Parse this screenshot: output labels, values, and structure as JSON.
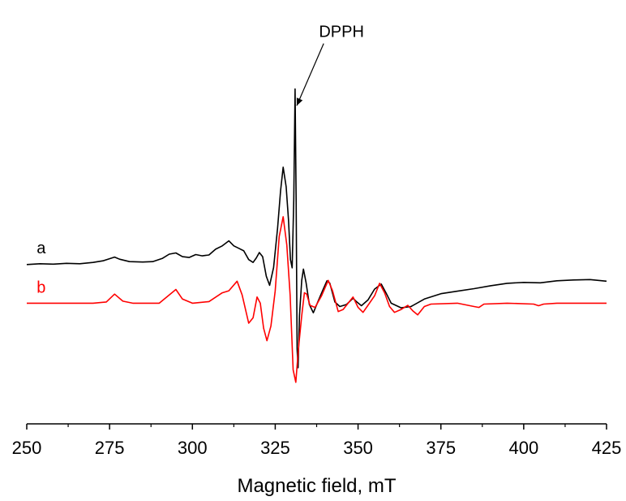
{
  "chart_data": {
    "type": "line",
    "title": "",
    "xlabel": "Magnetic field, mT",
    "ylabel": "",
    "xlim": [
      250,
      425
    ],
    "xticks": [
      250,
      275,
      300,
      325,
      350,
      375,
      400,
      425
    ],
    "x_tick_labels": [
      "250",
      "275",
      "300",
      "325",
      "350",
      "375",
      "400",
      "425"
    ],
    "yticks_shown": false,
    "grid": false,
    "legend": "none",
    "series": [
      {
        "name": "a",
        "color": "#000000",
        "points": [
          [
            250,
            0.93
          ],
          [
            254,
            0.95
          ],
          [
            258,
            0.94
          ],
          [
            262,
            0.96
          ],
          [
            266,
            0.95
          ],
          [
            270,
            0.98
          ],
          [
            273,
            1.02
          ],
          [
            275,
            1.07
          ],
          [
            276.5,
            1.11
          ],
          [
            278,
            1.06
          ],
          [
            281,
            1.0
          ],
          [
            285,
            0.99
          ],
          [
            288,
            1.0
          ],
          [
            291,
            1.08
          ],
          [
            293,
            1.18
          ],
          [
            295,
            1.21
          ],
          [
            297,
            1.12
          ],
          [
            299,
            1.1
          ],
          [
            301,
            1.17
          ],
          [
            303,
            1.14
          ],
          [
            305,
            1.16
          ],
          [
            307,
            1.3
          ],
          [
            309,
            1.38
          ],
          [
            311,
            1.5
          ],
          [
            312.5,
            1.38
          ],
          [
            314,
            1.32
          ],
          [
            315.5,
            1.26
          ],
          [
            317,
            1.05
          ],
          [
            318.3,
            0.98
          ],
          [
            319.3,
            1.09
          ],
          [
            320.2,
            1.22
          ],
          [
            321.2,
            1.12
          ],
          [
            322.3,
            0.65
          ],
          [
            323.3,
            0.43
          ],
          [
            324.5,
            0.86
          ],
          [
            325.7,
            1.8
          ],
          [
            326.6,
            2.7
          ],
          [
            327.4,
            3.27
          ],
          [
            328.3,
            2.8
          ],
          [
            329.0,
            2.0
          ],
          [
            329.6,
            1.05
          ],
          [
            330.1,
            0.85
          ],
          [
            330.6,
            2.5
          ],
          [
            331.0,
            5.15
          ],
          [
            331.3,
            2.5
          ],
          [
            331.6,
            -1.1
          ],
          [
            331.9,
            -1.55
          ],
          [
            332.3,
            -0.3
          ],
          [
            333.0,
            0.55
          ],
          [
            333.5,
            0.82
          ],
          [
            334.3,
            0.5
          ],
          [
            335.3,
            -0.03
          ],
          [
            336.5,
            -0.23
          ],
          [
            338.0,
            0.06
          ],
          [
            339.5,
            0.34
          ],
          [
            340.6,
            0.54
          ],
          [
            341.5,
            0.48
          ],
          [
            343.0,
            0.03
          ],
          [
            344.5,
            -0.08
          ],
          [
            346.5,
            -0.03
          ],
          [
            348.5,
            0.12
          ],
          [
            349.5,
            0.04
          ],
          [
            351.0,
            -0.06
          ],
          [
            353.0,
            0.08
          ],
          [
            355.0,
            0.34
          ],
          [
            357.0,
            0.46
          ],
          [
            358.5,
            0.24
          ],
          [
            360.0,
            0.0
          ],
          [
            363.0,
            -0.11
          ],
          [
            366.0,
            -0.08
          ],
          [
            370.0,
            0.1
          ],
          [
            375.0,
            0.23
          ],
          [
            380.0,
            0.29
          ],
          [
            385.0,
            0.35
          ],
          [
            390.0,
            0.42
          ],
          [
            395.0,
            0.48
          ],
          [
            400.0,
            0.5
          ],
          [
            405.0,
            0.49
          ],
          [
            410.0,
            0.54
          ],
          [
            415.0,
            0.56
          ],
          [
            420.0,
            0.57
          ],
          [
            425.0,
            0.53
          ]
        ]
      },
      {
        "name": "b",
        "color": "#ff0000",
        "points": [
          [
            250,
            0.0
          ],
          [
            270,
            0.0
          ],
          [
            274,
            0.03
          ],
          [
            276.5,
            0.22
          ],
          [
            279,
            0.05
          ],
          [
            282,
            0.0
          ],
          [
            290,
            0.0
          ],
          [
            293,
            0.2
          ],
          [
            295,
            0.33
          ],
          [
            297,
            0.1
          ],
          [
            300,
            0.0
          ],
          [
            305,
            0.04
          ],
          [
            309,
            0.25
          ],
          [
            311,
            0.3
          ],
          [
            313.5,
            0.53
          ],
          [
            315,
            0.2
          ],
          [
            317,
            -0.48
          ],
          [
            318.3,
            -0.35
          ],
          [
            319.5,
            0.15
          ],
          [
            320.5,
            0.0
          ],
          [
            321.5,
            -0.6
          ],
          [
            322.5,
            -0.9
          ],
          [
            323.7,
            -0.55
          ],
          [
            325,
            0.3
          ],
          [
            326.2,
            1.6
          ],
          [
            327.4,
            2.08
          ],
          [
            328.5,
            1.4
          ],
          [
            329.5,
            0.2
          ],
          [
            330.4,
            -1.6
          ],
          [
            331.2,
            -1.9
          ],
          [
            332.0,
            -1.1
          ],
          [
            333.0,
            -0.3
          ],
          [
            333.8,
            0.25
          ],
          [
            334.5,
            0.22
          ],
          [
            335.5,
            -0.05
          ],
          [
            337.0,
            -0.1
          ],
          [
            339.0,
            0.18
          ],
          [
            341.0,
            0.55
          ],
          [
            342.3,
            0.3
          ],
          [
            344.0,
            -0.2
          ],
          [
            345.5,
            -0.15
          ],
          [
            347.0,
            0.0
          ],
          [
            348.5,
            0.15
          ],
          [
            350.0,
            -0.1
          ],
          [
            351.5,
            -0.22
          ],
          [
            353.0,
            -0.05
          ],
          [
            355.0,
            0.18
          ],
          [
            356.5,
            0.48
          ],
          [
            358.0,
            0.25
          ],
          [
            359.5,
            -0.08
          ],
          [
            361.0,
            -0.22
          ],
          [
            363.0,
            -0.15
          ],
          [
            365.0,
            -0.05
          ],
          [
            366.5,
            -0.18
          ],
          [
            368.0,
            -0.28
          ],
          [
            370.0,
            -0.08
          ],
          [
            372.0,
            -0.02
          ],
          [
            380.0,
            0.0
          ],
          [
            385.0,
            -0.08
          ],
          [
            386.5,
            -0.1
          ],
          [
            388.0,
            -0.02
          ],
          [
            395.0,
            0.0
          ],
          [
            403.0,
            -0.02
          ],
          [
            404.5,
            -0.06
          ],
          [
            406.0,
            -0.02
          ],
          [
            410.0,
            0.0
          ],
          [
            425.0,
            0.0
          ]
        ]
      }
    ],
    "annotations": [
      {
        "text": "a",
        "color": "#000000",
        "x": 253,
        "y": 1.2
      },
      {
        "text": "b",
        "color": "#ff0000",
        "x": 253,
        "y": 0.25
      },
      {
        "text": "DPPH",
        "color": "#000000",
        "x": 345,
        "y": 6.4,
        "arrow_to": [
          331.5,
          4.75
        ]
      }
    ],
    "ylim": [
      -2.9,
      6.9
    ]
  }
}
